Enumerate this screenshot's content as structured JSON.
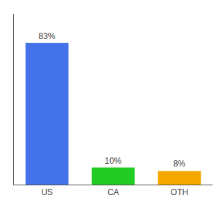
{
  "chart_data": {
    "type": "bar",
    "categories": [
      "US",
      "CA",
      "OTH"
    ],
    "values": [
      83,
      10,
      8
    ],
    "value_labels": [
      "83%",
      "10%",
      "8%"
    ],
    "colors": [
      "#4472e8",
      "#22cc22",
      "#f5a800"
    ],
    "ylim": [
      0,
      100
    ],
    "grid": false,
    "tick_labels": "x",
    "data_labels": true
  }
}
